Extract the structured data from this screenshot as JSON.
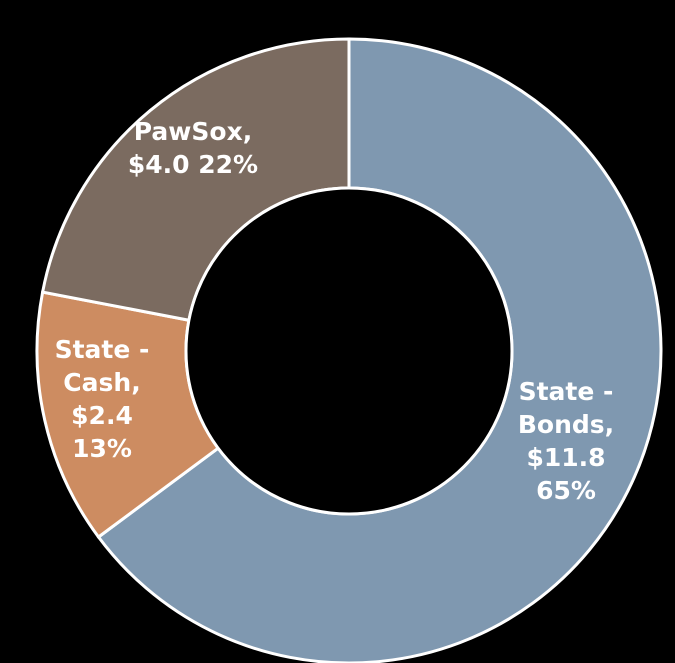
{
  "chart_data": {
    "type": "pie",
    "style": "donut",
    "background": "#000000",
    "slice_border": "#ffffff",
    "slices": [
      {
        "key": "bonds",
        "value": 11.8,
        "percent": 65,
        "color": "#7f98b0",
        "label_lines": [
          "State -",
          "Bonds,",
          "$11.8",
          "65%"
        ]
      },
      {
        "key": "cash",
        "value": 2.4,
        "percent": 13,
        "color": "#cd8c61",
        "label_lines": [
          "State -",
          "Cash,",
          "$2.4",
          "13%"
        ]
      },
      {
        "key": "pawsox",
        "value": 4.0,
        "percent": 22,
        "color": "#7b6b60",
        "label_lines": [
          "PawSox,",
          "$4.0  22%"
        ]
      }
    ]
  }
}
